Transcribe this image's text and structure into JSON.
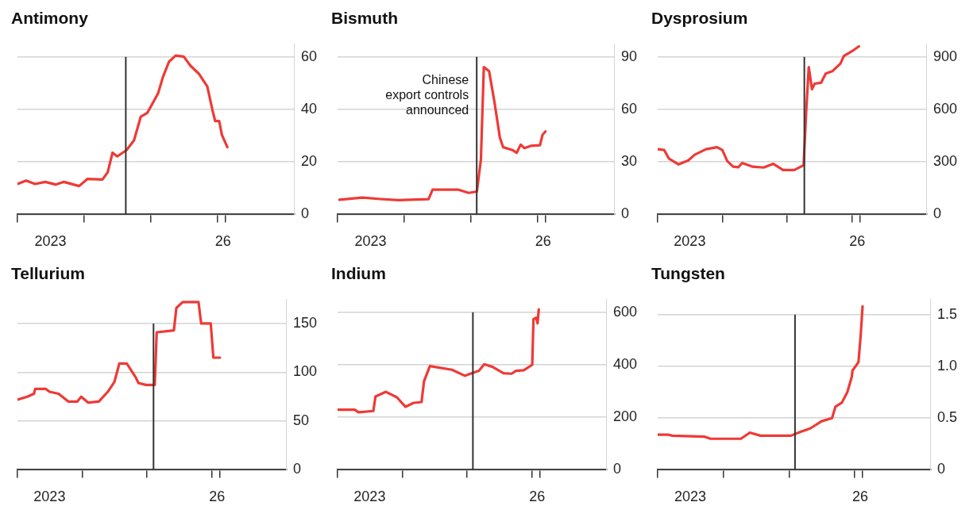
{
  "chart_data": [
    {
      "type": "line",
      "title": "Antimony",
      "grid": "y",
      "xlim": [
        "2023-01-01",
        "2027-03-01"
      ],
      "ylim": [
        0,
        65
      ],
      "xticks": [
        {
          "value": "2023-01-01",
          "label": null
        },
        {
          "value": "2023-07-01",
          "label": "2023"
        },
        {
          "value": "2024-01-01",
          "label": null
        },
        {
          "value": "2025-01-01",
          "label": null
        },
        {
          "value": "2026-01-01",
          "label": null
        },
        {
          "value": "2026-02-01",
          "label": "26"
        },
        {
          "value": "2026-02-15",
          "label": null
        }
      ],
      "yticks": [
        0,
        20,
        40,
        60
      ],
      "ref_lines": [
        {
          "axis": "x",
          "value": "2024-08-17",
          "label": null,
          "color": "#333333"
        }
      ],
      "x": [
        "2023-01-01",
        "2023-02-17",
        "2023-04-08",
        "2023-06-02",
        "2023-07-29",
        "2023-09-13",
        "2023-12-05",
        "2024-01-19",
        "2024-04-11",
        "2024-05-10",
        "2024-06-05",
        "2024-07-01",
        "2024-08-21",
        "2024-10-01",
        "2024-11-07",
        "2024-12-13",
        "2025-01-04",
        "2025-02-10",
        "2025-03-09",
        "2025-04-11",
        "2025-05-17",
        "2025-07-01",
        "2025-08-07",
        "2025-09-23",
        "2025-11-07",
        "2025-12-05",
        "2025-12-20",
        "2026-01-11",
        "2026-01-26",
        "2026-02-25"
      ],
      "series": [
        {
          "color": "#ee3a36",
          "values": [
            11.6,
            12.9,
            11.6,
            12.4,
            11.4,
            12.4,
            10.8,
            13.5,
            13.3,
            16.1,
            23.5,
            22.1,
            24.5,
            28.2,
            37.2,
            38.7,
            41.4,
            46.1,
            52.4,
            58.2,
            60.5,
            60.1,
            56.6,
            53.5,
            48.7,
            39.8,
            35.6,
            35.6,
            30.3,
            25.6
          ]
        }
      ]
    },
    {
      "type": "line",
      "title": "Bismuth",
      "grid": "y",
      "xlim": [
        "2023-01-01",
        "2027-03-01"
      ],
      "ylim": [
        0,
        97.5
      ],
      "xticks": [
        {
          "value": "2023-01-01",
          "label": null
        },
        {
          "value": "2023-07-01",
          "label": "2023"
        },
        {
          "value": "2024-01-01",
          "label": null
        },
        {
          "value": "2025-01-01",
          "label": null
        },
        {
          "value": "2026-01-01",
          "label": null
        },
        {
          "value": "2026-02-01",
          "label": "26"
        },
        {
          "value": "2026-02-15",
          "label": null
        }
      ],
      "yticks": [
        0,
        30,
        60,
        90
      ],
      "ref_lines": [
        {
          "axis": "x",
          "value": "2025-02-02",
          "label": null,
          "color": "#333333"
        }
      ],
      "annotations": [
        {
          "text": "Chinese\nexport controls\nannounced",
          "x": "2025-02-02",
          "y": 80
        }
      ],
      "x": [
        "2023-01-11",
        "2023-05-17",
        "2023-08-25",
        "2023-12-02",
        "2024-05-14",
        "2024-06-05",
        "2024-10-22",
        "2024-12-20",
        "2025-02-03",
        "2025-02-25",
        "2025-03-13",
        "2025-04-11",
        "2025-05-10",
        "2025-06-09",
        "2025-06-27",
        "2025-08-17",
        "2025-09-09",
        "2025-10-01",
        "2025-10-22",
        "2025-11-25",
        "2026-01-15",
        "2026-01-29",
        "2026-02-14"
      ],
      "series": [
        {
          "color": "#ee3a36",
          "values": [
            8.4,
            9.6,
            8.8,
            8.2,
            8.7,
            14.2,
            14.2,
            12.3,
            13.1,
            31.3,
            84.2,
            81.8,
            64.4,
            43.9,
            38.4,
            36.8,
            35.2,
            39.9,
            37.9,
            39.2,
            39.5,
            45.5,
            47.4
          ]
        }
      ]
    },
    {
      "type": "line",
      "title": "Dysprosium",
      "grid": "y",
      "xlim": [
        "2023-01-01",
        "2027-03-01"
      ],
      "ylim": [
        0,
        975
      ],
      "xticks": [
        {
          "value": "2023-01-01",
          "label": null
        },
        {
          "value": "2023-07-01",
          "label": "2023"
        },
        {
          "value": "2024-01-01",
          "label": null
        },
        {
          "value": "2025-01-01",
          "label": null
        },
        {
          "value": "2026-01-01",
          "label": null
        },
        {
          "value": "2026-02-01",
          "label": "26"
        },
        {
          "value": "2026-02-15",
          "label": null
        }
      ],
      "yticks": [
        0,
        300,
        600,
        900
      ],
      "ref_lines": [
        {
          "axis": "x",
          "value": "2025-04-08",
          "label": null,
          "color": "#333333"
        }
      ],
      "x": [
        "2023-01-01",
        "2023-02-07",
        "2023-03-05",
        "2023-04-29",
        "2023-06-23",
        "2023-07-29",
        "2023-10-01",
        "2023-12-02",
        "2024-01-01",
        "2024-01-29",
        "2024-03-02",
        "2024-04-01",
        "2024-04-22",
        "2024-06-20",
        "2024-08-21",
        "2024-10-15",
        "2024-12-09",
        "2025-02-10",
        "2025-04-04",
        "2025-04-19",
        "2025-05-03",
        "2025-05-21",
        "2025-06-05",
        "2025-07-11",
        "2025-08-07",
        "2025-09-13",
        "2025-10-29",
        "2025-11-17",
        "2026-01-01",
        "2026-02-10"
      ],
      "series": [
        {
          "color": "#ee3a36",
          "values": [
            373,
            368,
            320,
            286,
            309,
            341,
            373,
            384,
            368,
            305,
            273,
            270,
            294,
            273,
            268,
            289,
            254,
            254,
            281,
            597,
            842,
            715,
            747,
            752,
            805,
            818,
            862,
            905,
            932,
            960
          ]
        }
      ]
    },
    {
      "type": "line",
      "title": "Tellurium",
      "grid": "y",
      "xlim": [
        "2023-01-01",
        "2027-03-01"
      ],
      "ylim": [
        0,
        175
      ],
      "xticks": [
        {
          "value": "2023-01-01",
          "label": null
        },
        {
          "value": "2023-07-01",
          "label": "2023"
        },
        {
          "value": "2024-01-01",
          "label": null
        },
        {
          "value": "2025-01-01",
          "label": null
        },
        {
          "value": "2026-01-01",
          "label": null
        },
        {
          "value": "2026-02-01",
          "label": "26"
        },
        {
          "value": "2026-02-15",
          "label": null
        }
      ],
      "yticks": [
        0,
        50,
        100,
        150
      ],
      "ref_lines": [
        {
          "axis": "x",
          "value": "2025-02-07",
          "label": null,
          "color": "#333333"
        }
      ],
      "x": [
        "2023-01-01",
        "2023-02-25",
        "2023-04-04",
        "2023-04-11",
        "2023-06-09",
        "2023-07-01",
        "2023-08-21",
        "2023-10-15",
        "2023-12-05",
        "2023-12-27",
        "2024-02-03",
        "2024-04-04",
        "2024-05-25",
        "2024-07-01",
        "2024-07-29",
        "2024-09-09",
        "2024-10-29",
        "2024-11-14",
        "2024-12-27",
        "2025-02-14",
        "2025-02-25",
        "2025-06-02",
        "2025-06-16",
        "2025-07-22",
        "2025-10-19",
        "2025-11-03",
        "2025-12-27",
        "2026-01-11",
        "2026-02-17"
      ],
      "series": [
        {
          "color": "#ee3a36",
          "values": [
            72,
            75,
            78,
            83,
            83,
            80,
            78,
            70,
            70,
            75,
            69,
            70,
            80,
            90,
            109,
            109,
            95,
            89,
            87,
            87,
            141,
            143,
            166,
            172,
            172,
            150,
            150,
            115,
            115
          ]
        }
      ]
    },
    {
      "type": "line",
      "title": "Indium",
      "grid": "y",
      "xlim": [
        "2023-01-01",
        "2027-03-01"
      ],
      "ylim": [
        0,
        650
      ],
      "xticks": [
        {
          "value": "2023-01-01",
          "label": null
        },
        {
          "value": "2023-07-01",
          "label": "2023"
        },
        {
          "value": "2024-01-01",
          "label": null
        },
        {
          "value": "2025-01-01",
          "label": null
        },
        {
          "value": "2026-01-01",
          "label": null
        },
        {
          "value": "2026-02-01",
          "label": "26"
        },
        {
          "value": "2026-02-15",
          "label": null
        }
      ],
      "yticks": [
        0,
        200,
        400,
        600
      ],
      "ref_lines": [
        {
          "axis": "x",
          "value": "2025-02-03",
          "label": null,
          "color": "#333333"
        }
      ],
      "x": [
        "2023-01-01",
        "2023-04-08",
        "2023-04-29",
        "2023-07-22",
        "2023-08-03",
        "2023-10-01",
        "2023-12-02",
        "2024-01-19",
        "2024-03-05",
        "2024-04-19",
        "2024-05-03",
        "2024-06-05",
        "2024-10-08",
        "2024-12-20",
        "2025-01-29",
        "2025-03-09",
        "2025-04-08",
        "2025-05-25",
        "2025-07-26",
        "2025-09-09",
        "2025-10-04",
        "2025-11-17",
        "2026-01-04",
        "2026-01-11",
        "2026-01-26",
        "2026-02-03",
        "2026-02-10"
      ],
      "series": [
        {
          "color": "#ee3a36",
          "values": [
            229,
            229,
            219,
            224,
            279,
            297,
            276,
            240,
            255,
            258,
            337,
            395,
            381,
            358,
            368,
            377,
            402,
            392,
            368,
            366,
            377,
            379,
            400,
            574,
            579,
            558,
            611
          ]
        }
      ]
    },
    {
      "type": "line",
      "title": "Tungsten",
      "grid": "y",
      "xlim": [
        "2023-01-01",
        "2027-03-01"
      ],
      "ylim": [
        0,
        1.65
      ],
      "xticks": [
        {
          "value": "2023-01-01",
          "label": null
        },
        {
          "value": "2023-07-01",
          "label": "2023"
        },
        {
          "value": "2024-01-01",
          "label": null
        },
        {
          "value": "2025-01-01",
          "label": null
        },
        {
          "value": "2026-01-01",
          "label": null
        },
        {
          "value": "2026-02-01",
          "label": "26"
        },
        {
          "value": "2026-02-15",
          "label": null
        }
      ],
      "yticks": [
        0,
        0.5,
        {
          "value": 1,
          "label": "1.0"
        },
        1.5
      ],
      "ref_lines": [
        {
          "axis": "x",
          "value": "2025-02-03",
          "label": null,
          "color": "#333333"
        }
      ],
      "x": [
        "2023-01-01",
        "2023-02-28",
        "2023-03-23",
        "2023-09-20",
        "2023-10-22",
        "2024-04-08",
        "2024-05-28",
        "2024-07-26",
        "2025-01-11",
        "2025-03-09",
        "2025-04-29",
        "2025-07-01",
        "2025-08-28",
        "2025-09-16",
        "2025-10-22",
        "2025-11-21",
        "2025-12-16",
        "2025-12-20",
        "2026-01-22",
        "2026-02-03",
        "2026-02-14"
      ],
      "series": [
        {
          "color": "#ee3a36",
          "values": [
            0.34,
            0.34,
            0.33,
            0.32,
            0.3,
            0.3,
            0.36,
            0.33,
            0.33,
            0.37,
            0.4,
            0.47,
            0.5,
            0.61,
            0.65,
            0.75,
            0.9,
            0.96,
            1.04,
            1.29,
            1.58
          ]
        }
      ]
    }
  ]
}
